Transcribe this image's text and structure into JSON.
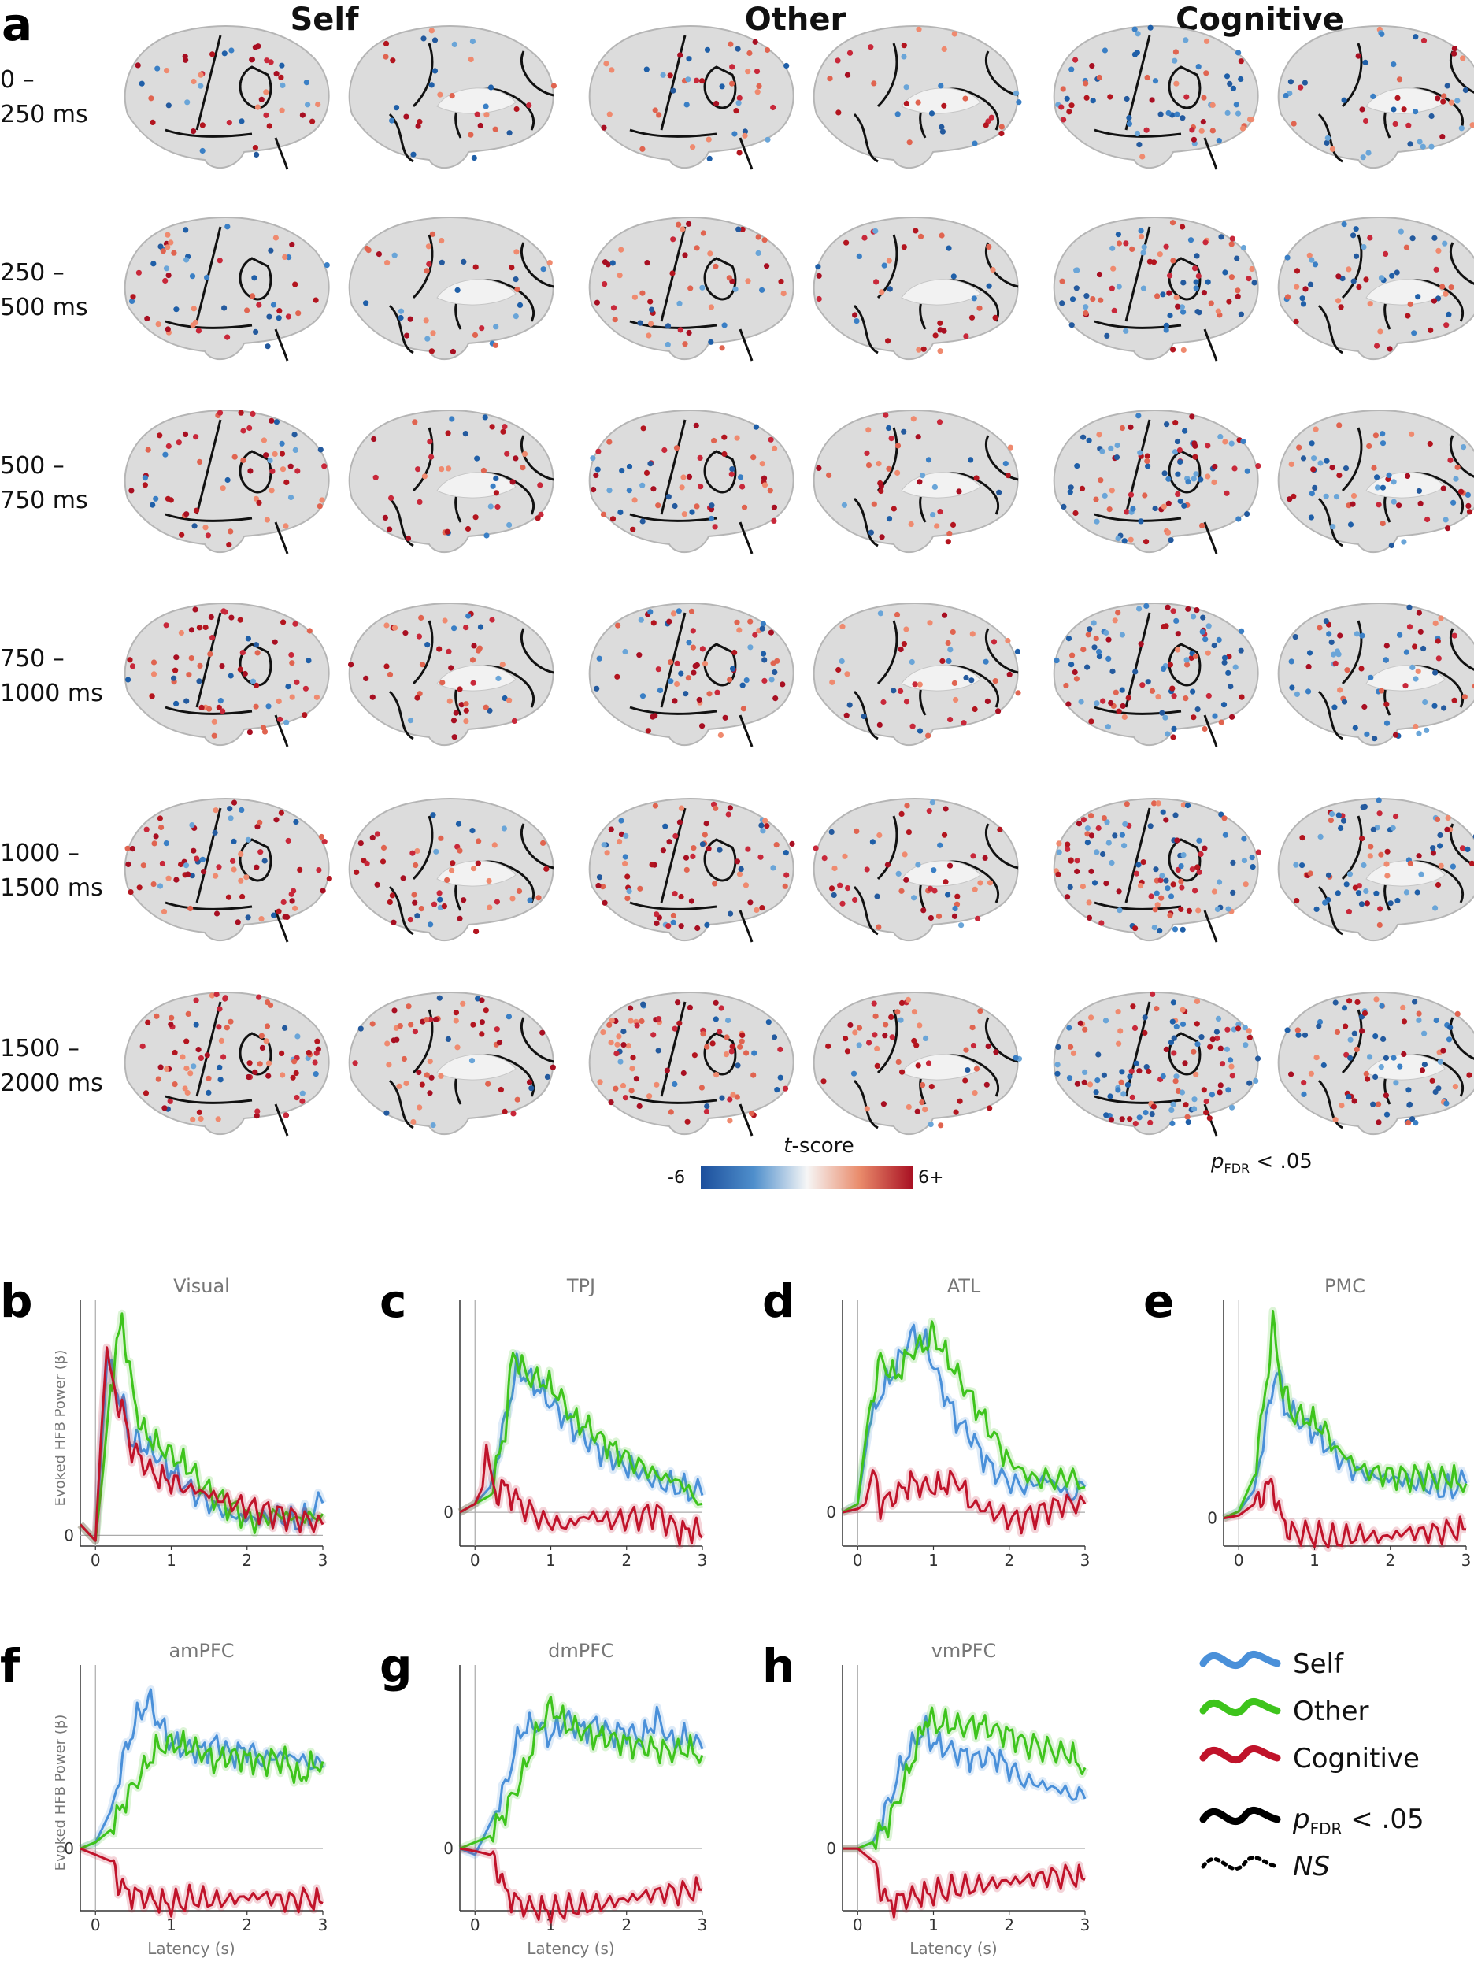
{
  "panel_a": {
    "letter": "a",
    "columns": [
      "Self",
      "Other",
      "Cognitive"
    ],
    "time_windows": [
      {
        "line1": "0 –",
        "line2": "250 ms"
      },
      {
        "line1": "250 –",
        "line2": "500 ms"
      },
      {
        "line1": "500 –",
        "line2": "750 ms"
      },
      {
        "line1": "750 –",
        "line2": "1000 ms"
      },
      {
        "line1": "1000 –",
        "line2": "1500 ms"
      },
      {
        "line1": "1500 –",
        "line2": "2000 ms"
      }
    ],
    "colorbar": {
      "title_italic": "t",
      "title_rest": "-score",
      "min_label": "-6",
      "max_label": "6+"
    },
    "threshold_label": {
      "p": "p",
      "sub": "FDR",
      "rest": " < .05"
    }
  },
  "colors": {
    "self": "#4a90d9",
    "other": "#3ec41c",
    "cognitive": "#c0132a",
    "negative": "#1f5fa8",
    "positive": "#b3151f"
  },
  "chart_data": [
    {
      "letter": "b",
      "type": "line",
      "title": "Visual",
      "xlabel": "",
      "ylabel": "Evoked HFB Power (β)",
      "xlim": [
        -0.2,
        3
      ],
      "ylim": [
        -0.1,
        2.1
      ],
      "xticks": [
        "0",
        "1",
        "2",
        "3"
      ],
      "yticks": [
        "0"
      ],
      "series": [
        {
          "name": "Self",
          "x": [
            -0.2,
            0,
            0.08,
            0.16,
            0.25,
            0.35,
            0.45,
            0.6,
            0.8,
            1.0,
            1.2,
            1.5,
            1.8,
            2.1,
            2.4,
            2.7,
            3.0
          ],
          "y": [
            0.1,
            -0.05,
            0.8,
            1.7,
            1.4,
            1.25,
            0.9,
            0.85,
            0.75,
            0.6,
            0.45,
            0.3,
            0.18,
            0.15,
            0.17,
            0.12,
            0.3
          ]
        },
        {
          "name": "Other",
          "x": [
            -0.2,
            0,
            0.1,
            0.2,
            0.3,
            0.35,
            0.45,
            0.6,
            0.8,
            1.0,
            1.2,
            1.5,
            1.8,
            2.1,
            2.4,
            2.7,
            3.0
          ],
          "y": [
            0.1,
            -0.05,
            0.6,
            1.4,
            1.8,
            2.05,
            1.5,
            1.0,
            0.85,
            0.75,
            0.65,
            0.4,
            0.25,
            0.13,
            0.2,
            0.15,
            0.2
          ]
        },
        {
          "name": "Cognitive",
          "x": [
            -0.2,
            0,
            0.08,
            0.15,
            0.25,
            0.35,
            0.45,
            0.6,
            0.8,
            1.0,
            1.2,
            1.5,
            1.8,
            2.1,
            2.4,
            2.7,
            3.0
          ],
          "y": [
            0.1,
            -0.05,
            1.0,
            1.75,
            1.3,
            1.2,
            0.85,
            0.7,
            0.55,
            0.5,
            0.45,
            0.38,
            0.3,
            0.25,
            0.2,
            0.15,
            0.1
          ]
        }
      ]
    },
    {
      "letter": "c",
      "type": "line",
      "title": "TPJ",
      "xlabel": "",
      "ylabel": "",
      "xlim": [
        -0.2,
        3
      ],
      "ylim": [
        -0.2,
        1.2
      ],
      "xticks": [
        "0",
        "1",
        "2",
        "3"
      ],
      "yticks": [
        "0"
      ],
      "series": [
        {
          "name": "Self",
          "x": [
            -0.2,
            0,
            0.2,
            0.4,
            0.55,
            0.7,
            0.9,
            1.1,
            1.3,
            1.5,
            1.7,
            1.9,
            2.1,
            2.4,
            2.7,
            3.0
          ],
          "y": [
            0.0,
            0.05,
            0.15,
            0.55,
            0.85,
            0.8,
            0.7,
            0.6,
            0.5,
            0.42,
            0.35,
            0.3,
            0.25,
            0.18,
            0.15,
            0.1
          ]
        },
        {
          "name": "Other",
          "x": [
            -0.2,
            0,
            0.2,
            0.4,
            0.5,
            0.7,
            0.9,
            1.1,
            1.3,
            1.5,
            1.7,
            1.9,
            2.1,
            2.4,
            2.7,
            3.0
          ],
          "y": [
            0.0,
            0.05,
            0.1,
            0.5,
            0.95,
            0.8,
            0.78,
            0.7,
            0.55,
            0.5,
            0.42,
            0.35,
            0.3,
            0.22,
            0.18,
            0.05
          ]
        },
        {
          "name": "Cognitive",
          "x": [
            -0.2,
            0,
            0.1,
            0.15,
            0.25,
            0.35,
            0.45,
            0.6,
            0.9,
            1.2,
            1.5,
            1.8,
            2.1,
            2.4,
            2.7,
            2.9,
            3.0
          ],
          "y": [
            0.0,
            0.05,
            0.15,
            0.4,
            0.1,
            0.15,
            0.12,
            0.05,
            -0.05,
            -0.08,
            -0.02,
            -0.05,
            -0.03,
            0.0,
            -0.12,
            -0.1,
            -0.15
          ]
        }
      ]
    },
    {
      "letter": "d",
      "type": "line",
      "title": "ATL",
      "xlabel": "",
      "ylabel": "",
      "xlim": [
        -0.2,
        3
      ],
      "ylim": [
        -0.2,
        1.2
      ],
      "xticks": [
        "0",
        "1",
        "2",
        "3"
      ],
      "yticks": [
        "0"
      ],
      "series": [
        {
          "name": "Self",
          "x": [
            -0.2,
            0,
            0.15,
            0.3,
            0.5,
            0.7,
            0.9,
            1.1,
            1.3,
            1.5,
            1.7,
            1.9,
            2.2,
            2.5,
            2.8,
            3.0
          ],
          "y": [
            0.0,
            0.05,
            0.5,
            0.7,
            0.85,
            1.05,
            1.0,
            0.75,
            0.55,
            0.45,
            0.3,
            0.2,
            0.15,
            0.2,
            0.1,
            0.15
          ]
        },
        {
          "name": "Other",
          "x": [
            -0.2,
            0,
            0.15,
            0.3,
            0.5,
            0.7,
            0.9,
            1.0,
            1.2,
            1.4,
            1.6,
            1.8,
            2.0,
            2.3,
            2.6,
            3.0
          ],
          "y": [
            0.0,
            0.05,
            0.6,
            0.9,
            0.8,
            0.95,
            1.0,
            1.05,
            0.9,
            0.75,
            0.6,
            0.45,
            0.3,
            0.2,
            0.2,
            0.15
          ]
        },
        {
          "name": "Cognitive",
          "x": [
            -0.2,
            0,
            0.1,
            0.2,
            0.3,
            0.5,
            0.7,
            0.9,
            1.1,
            1.3,
            1.5,
            1.8,
            2.1,
            2.4,
            2.7,
            3.0
          ],
          "y": [
            0.0,
            0.02,
            0.05,
            0.25,
            0.05,
            0.1,
            0.18,
            0.15,
            0.15,
            0.2,
            0.05,
            0.0,
            -0.05,
            0.0,
            0.05,
            0.05
          ]
        }
      ]
    },
    {
      "letter": "e",
      "type": "line",
      "title": "PMC",
      "xlabel": "",
      "ylabel": "",
      "xlim": [
        -0.2,
        3
      ],
      "ylim": [
        -0.2,
        1.5
      ],
      "xticks": [
        "0",
        "1",
        "2",
        "3"
      ],
      "yticks": [
        "0"
      ],
      "series": [
        {
          "name": "Self",
          "x": [
            -0.2,
            0,
            0.2,
            0.4,
            0.5,
            0.6,
            0.8,
            1.0,
            1.2,
            1.5,
            1.8,
            2.1,
            2.4,
            2.7,
            3.0
          ],
          "y": [
            0.0,
            0.05,
            0.2,
            0.8,
            1.1,
            0.8,
            0.7,
            0.62,
            0.5,
            0.35,
            0.3,
            0.28,
            0.25,
            0.2,
            0.25
          ]
        },
        {
          "name": "Other",
          "x": [
            -0.2,
            0,
            0.2,
            0.35,
            0.45,
            0.55,
            0.7,
            0.9,
            1.1,
            1.3,
            1.6,
            1.9,
            2.2,
            2.5,
            2.8,
            3.0
          ],
          "y": [
            0.0,
            0.05,
            0.3,
            0.9,
            1.4,
            1.0,
            0.75,
            0.72,
            0.65,
            0.5,
            0.35,
            0.32,
            0.3,
            0.3,
            0.28,
            0.25
          ]
        },
        {
          "name": "Cognitive",
          "x": [
            -0.2,
            0,
            0.2,
            0.35,
            0.45,
            0.55,
            0.7,
            1.0,
            1.3,
            1.6,
            1.9,
            2.2,
            2.5,
            2.8,
            3.0
          ],
          "y": [
            0.0,
            0.02,
            0.1,
            0.2,
            0.25,
            0.0,
            -0.1,
            -0.12,
            -0.15,
            -0.12,
            -0.14,
            -0.1,
            -0.1,
            -0.09,
            -0.08
          ]
        }
      ]
    },
    {
      "letter": "f",
      "type": "line",
      "title": "amPFC",
      "xlabel": "Latency (s)",
      "ylabel": "Evoked HFB Power (β)",
      "xlim": [
        -0.2,
        3
      ],
      "ylim": [
        -0.5,
        1.4
      ],
      "xticks": [
        "0",
        "1",
        "2",
        "3"
      ],
      "yticks": [
        "0"
      ],
      "series": [
        {
          "name": "Self",
          "x": [
            -0.2,
            0,
            0.2,
            0.4,
            0.55,
            0.7,
            0.85,
            1.0,
            1.2,
            1.4,
            1.6,
            1.8,
            2.0,
            2.2,
            2.5,
            2.8,
            3.0
          ],
          "y": [
            0.0,
            0.05,
            0.3,
            0.8,
            1.05,
            1.2,
            1.0,
            0.85,
            0.8,
            0.78,
            0.85,
            0.75,
            0.8,
            0.72,
            0.75,
            0.7,
            0.65
          ]
        },
        {
          "name": "Other",
          "x": [
            -0.2,
            0,
            0.2,
            0.4,
            0.6,
            0.8,
            1.0,
            1.2,
            1.4,
            1.6,
            1.8,
            2.0,
            2.2,
            2.5,
            2.7,
            2.8,
            3.0
          ],
          "y": [
            0.0,
            0.05,
            0.15,
            0.4,
            0.6,
            0.8,
            0.85,
            0.82,
            0.78,
            0.7,
            0.75,
            0.72,
            0.7,
            0.72,
            0.55,
            0.65,
            0.7
          ]
        },
        {
          "name": "Cognitive",
          "x": [
            -0.2,
            0,
            0.2,
            0.3,
            0.4,
            0.6,
            0.8,
            1.0,
            1.3,
            1.6,
            1.9,
            2.2,
            2.5,
            2.8,
            3.0
          ],
          "y": [
            0.0,
            -0.05,
            -0.1,
            -0.25,
            -0.35,
            -0.38,
            -0.42,
            -0.45,
            -0.4,
            -0.42,
            -0.4,
            -0.38,
            -0.42,
            -0.4,
            -0.44
          ]
        }
      ]
    },
    {
      "letter": "g",
      "type": "line",
      "title": "dmPFC",
      "xlabel": "Latency (s)",
      "ylabel": "",
      "xlim": [
        -0.2,
        3
      ],
      "ylim": [
        -0.5,
        1.4
      ],
      "xticks": [
        "0",
        "1",
        "2",
        "3"
      ],
      "yticks": [
        "0"
      ],
      "series": [
        {
          "name": "Self",
          "x": [
            -0.2,
            0,
            0.2,
            0.4,
            0.6,
            0.8,
            1.0,
            1.2,
            1.4,
            1.6,
            1.8,
            2.0,
            2.2,
            2.4,
            2.6,
            2.8,
            3.0
          ],
          "y": [
            0.0,
            -0.05,
            0.2,
            0.5,
            0.95,
            1.0,
            0.9,
            1.05,
            0.95,
            1.0,
            0.92,
            0.95,
            0.88,
            1.05,
            0.85,
            0.9,
            0.8
          ]
        },
        {
          "name": "Other",
          "x": [
            -0.2,
            0,
            0.2,
            0.4,
            0.6,
            0.8,
            1.0,
            1.2,
            1.4,
            1.6,
            1.8,
            2.0,
            2.2,
            2.4,
            2.6,
            2.8,
            3.0
          ],
          "y": [
            0.0,
            0.05,
            0.1,
            0.3,
            0.55,
            0.9,
            1.15,
            1.0,
            0.95,
            0.9,
            0.88,
            0.85,
            0.82,
            0.8,
            0.78,
            0.8,
            0.75
          ]
        },
        {
          "name": "Cognitive",
          "x": [
            -0.2,
            0,
            0.2,
            0.3,
            0.4,
            0.6,
            0.8,
            1.0,
            1.3,
            1.6,
            1.9,
            2.2,
            2.5,
            2.8,
            3.0
          ],
          "y": [
            0.0,
            -0.02,
            -0.05,
            -0.15,
            -0.35,
            -0.45,
            -0.48,
            -0.5,
            -0.47,
            -0.45,
            -0.42,
            -0.38,
            -0.35,
            -0.35,
            -0.33
          ]
        }
      ]
    },
    {
      "letter": "h",
      "type": "line",
      "title": "vmPFC",
      "xlabel": "Latency (s)",
      "ylabel": "",
      "xlim": [
        -0.2,
        3
      ],
      "ylim": [
        -0.5,
        1.4
      ],
      "xticks": [
        "0",
        "1",
        "2",
        "3"
      ],
      "yticks": [
        "0"
      ],
      "series": [
        {
          "name": "Self",
          "x": [
            -0.2,
            0,
            0.2,
            0.4,
            0.6,
            0.8,
            0.9,
            1.0,
            1.2,
            1.4,
            1.6,
            1.8,
            2.0,
            2.2,
            2.5,
            2.8,
            3.0
          ],
          "y": [
            0.0,
            0.0,
            0.05,
            0.35,
            0.7,
            0.9,
            0.95,
            0.85,
            0.8,
            0.75,
            0.72,
            0.75,
            0.65,
            0.55,
            0.5,
            0.45,
            0.4
          ]
        },
        {
          "name": "Other",
          "x": [
            -0.2,
            0,
            0.2,
            0.4,
            0.6,
            0.8,
            0.9,
            1.0,
            1.2,
            1.4,
            1.6,
            1.8,
            2.0,
            2.2,
            2.5,
            2.8,
            3.0
          ],
          "y": [
            0.0,
            0.0,
            0.05,
            0.2,
            0.5,
            0.85,
            1.05,
            1.0,
            1.0,
            0.98,
            1.0,
            0.95,
            0.92,
            0.85,
            0.8,
            0.75,
            0.65
          ]
        },
        {
          "name": "Cognitive",
          "x": [
            -0.2,
            0,
            0.2,
            0.3,
            0.4,
            0.6,
            0.8,
            1.0,
            1.3,
            1.6,
            1.9,
            2.2,
            2.5,
            2.8,
            3.0
          ],
          "y": [
            0.0,
            0.0,
            -0.1,
            -0.3,
            -0.45,
            -0.4,
            -0.38,
            -0.36,
            -0.32,
            -0.3,
            -0.27,
            -0.25,
            -0.22,
            -0.22,
            -0.25
          ]
        }
      ]
    }
  ],
  "legend": {
    "entries": [
      "Self",
      "Other",
      "Cognitive"
    ],
    "sig_p": "p",
    "sig_sub": "FDR",
    "sig_rest": " < .05",
    "ns": "NS"
  }
}
